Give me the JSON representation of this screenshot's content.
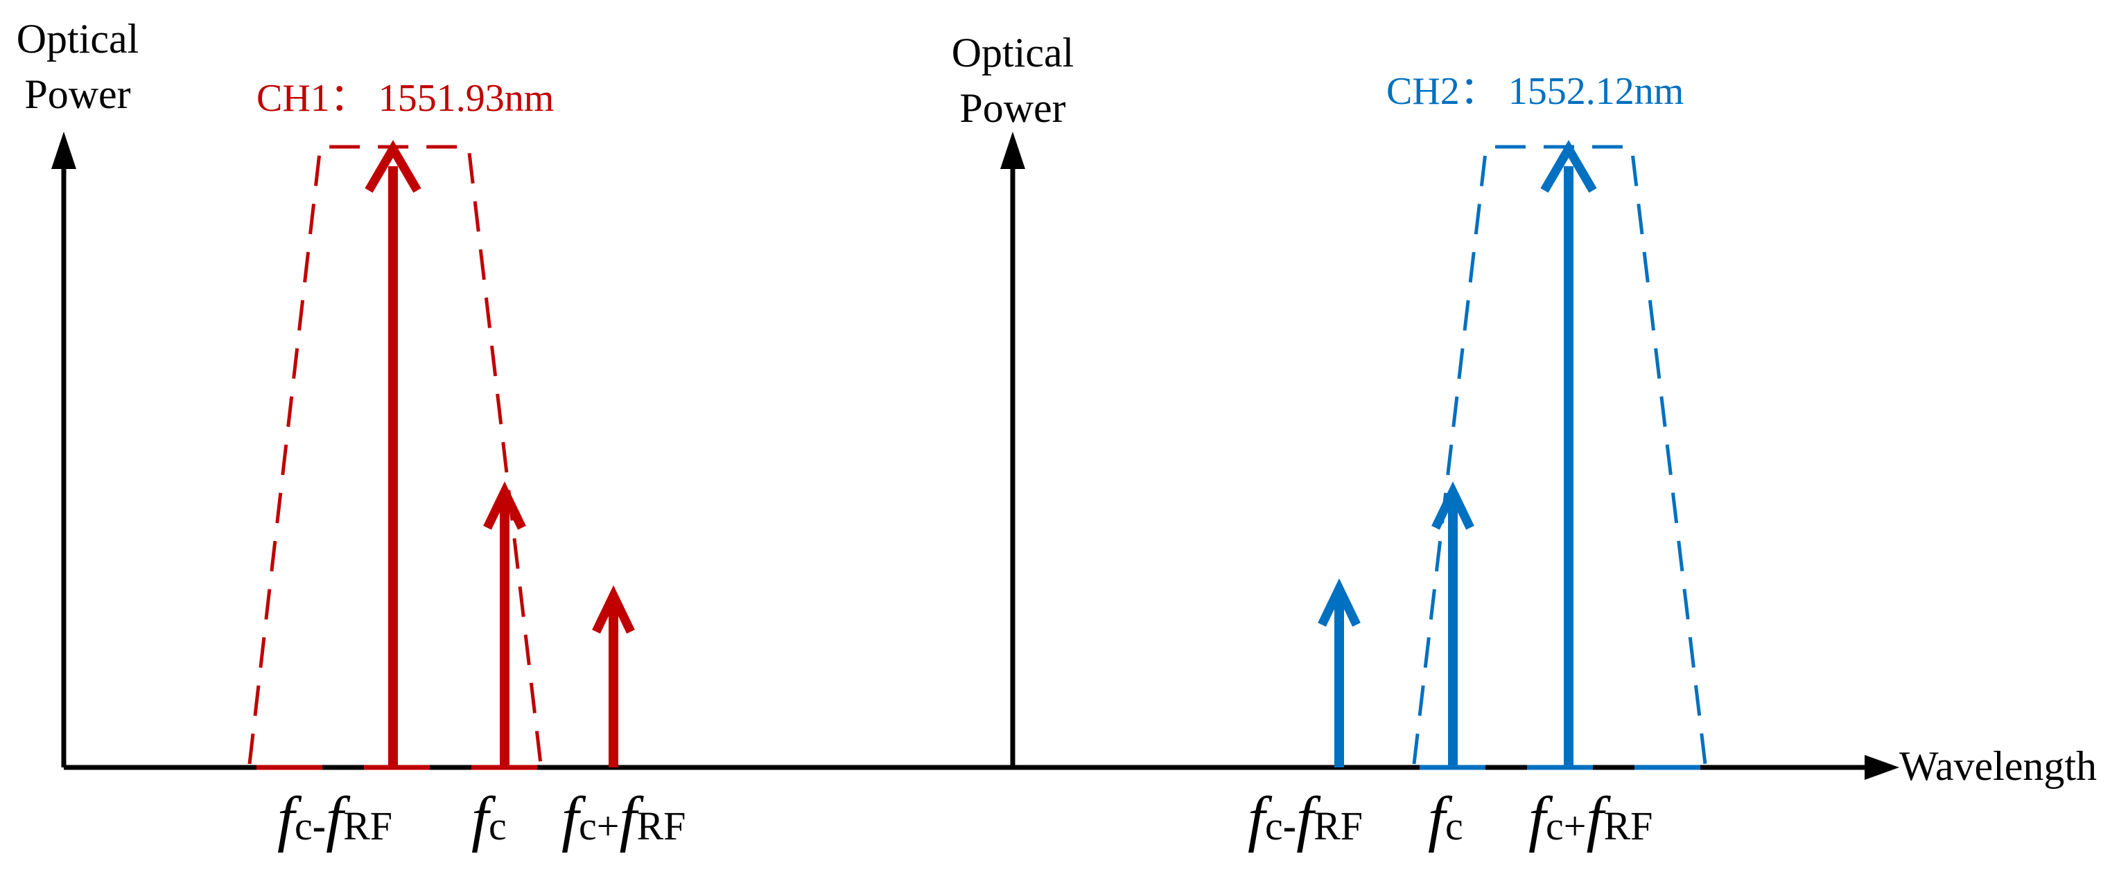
{
  "colors": {
    "axis": "#000000",
    "ch1": "#C00000",
    "ch2": "#0070C0"
  },
  "panels": [
    {
      "id": "ch1",
      "y_axis_label_line1": "Optical",
      "y_axis_label_line2": "Power",
      "channel_label": "CH1： 1551.93nm",
      "arrows": [
        {
          "name": "fc-frf",
          "relative_power": 1.0
        },
        {
          "name": "fc",
          "relative_power": 0.45
        },
        {
          "name": "fc+frf",
          "relative_power": 0.28
        }
      ],
      "tick_labels": {
        "minus": {
          "f1": "f",
          "s1": "c",
          "op": "-",
          "f2": "f",
          "s2": "RF"
        },
        "carrier": {
          "f1": "f",
          "s1": "c"
        },
        "plus": {
          "f1": "f",
          "s1": "c",
          "op": "+",
          "f2": "f",
          "s2": "RF"
        }
      }
    },
    {
      "id": "ch2",
      "y_axis_label_line1": "Optical",
      "y_axis_label_line2": "Power",
      "channel_label": "CH2： 1552.12nm",
      "arrows": [
        {
          "name": "fc-frf",
          "relative_power": 0.28
        },
        {
          "name": "fc",
          "relative_power": 0.45
        },
        {
          "name": "fc+frf",
          "relative_power": 1.0
        }
      ],
      "tick_labels": {
        "minus": {
          "f1": "f",
          "s1": "c",
          "op": "-",
          "f2": "f",
          "s2": "RF"
        },
        "carrier": {
          "f1": "f",
          "s1": "c"
        },
        "plus": {
          "f1": "f",
          "s1": "c",
          "op": "+",
          "f2": "f",
          "s2": "RF"
        }
      }
    }
  ],
  "x_axis_label": "Wavelength"
}
